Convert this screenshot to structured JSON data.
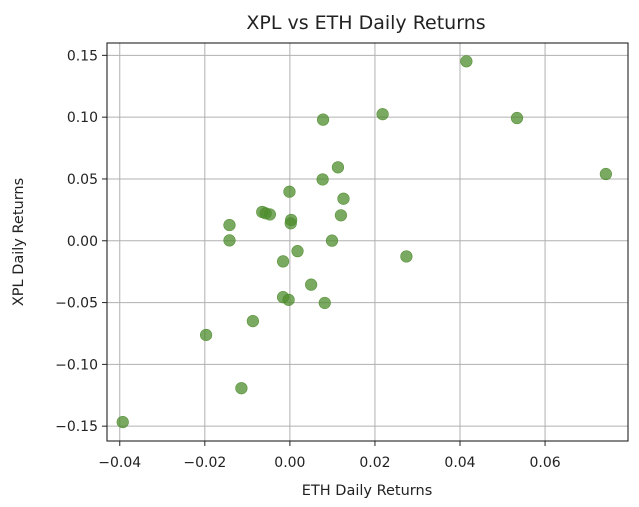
{
  "chart_data": {
    "type": "scatter",
    "title": "XPL vs ETH Daily Returns",
    "xlabel": "ETH Daily Returns",
    "ylabel": "XPL Daily Returns",
    "xlim": [
      -0.043,
      0.0795
    ],
    "ylim": [
      -0.162,
      0.16
    ],
    "xticks": [
      -0.04,
      -0.02,
      0.0,
      0.02,
      0.04,
      0.06
    ],
    "xtick_labels": [
      "−0.04",
      "−0.02",
      "0.00",
      "0.02",
      "0.04",
      "0.06"
    ],
    "yticks": [
      -0.15,
      -0.1,
      -0.05,
      0.0,
      0.05,
      0.1,
      0.15
    ],
    "ytick_labels": [
      "−0.15",
      "−0.10",
      "−0.05",
      "0.00",
      "0.05",
      "0.10",
      "0.15"
    ],
    "grid": true,
    "marker_color": "#4e8c2d",
    "marker_alpha": 0.75,
    "points": [
      {
        "x": -0.0393,
        "y": -0.1467
      },
      {
        "x": -0.0197,
        "y": -0.0762
      },
      {
        "x": -0.0142,
        "y": 0.0127
      },
      {
        "x": -0.0142,
        "y": 0.0003
      },
      {
        "x": -0.0114,
        "y": -0.1193
      },
      {
        "x": -0.0087,
        "y": -0.065
      },
      {
        "x": -0.0065,
        "y": 0.0233
      },
      {
        "x": -0.0057,
        "y": 0.0222
      },
      {
        "x": -0.0047,
        "y": 0.0213
      },
      {
        "x": -0.0016,
        "y": -0.0167
      },
      {
        "x": -0.0016,
        "y": -0.0456
      },
      {
        "x": -0.0003,
        "y": -0.0478
      },
      {
        "x": -0.0001,
        "y": 0.0397
      },
      {
        "x": 0.0002,
        "y": 0.0141
      },
      {
        "x": 0.0003,
        "y": 0.0168
      },
      {
        "x": 0.0018,
        "y": -0.0084
      },
      {
        "x": 0.005,
        "y": -0.0355
      },
      {
        "x": 0.0077,
        "y": 0.0496
      },
      {
        "x": 0.0078,
        "y": 0.098
      },
      {
        "x": 0.0082,
        "y": -0.0503
      },
      {
        "x": 0.0099,
        "y": 0.0001
      },
      {
        "x": 0.0113,
        "y": 0.0594
      },
      {
        "x": 0.012,
        "y": 0.0206
      },
      {
        "x": 0.0126,
        "y": 0.034
      },
      {
        "x": 0.0218,
        "y": 0.1024
      },
      {
        "x": 0.0274,
        "y": -0.0127
      },
      {
        "x": 0.0415,
        "y": 0.1452
      },
      {
        "x": 0.0534,
        "y": 0.0993
      },
      {
        "x": 0.0743,
        "y": 0.054
      }
    ]
  }
}
